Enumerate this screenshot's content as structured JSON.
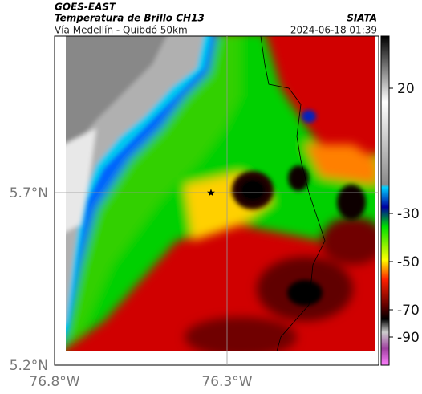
{
  "header": {
    "source": "GOES-EAST",
    "title": "Temperatura de Brillo CH13",
    "agency": "SIATA",
    "subtitle": "Vía Medellín - Quibdó 50km",
    "timestamp": "2024-06-18 01:39"
  },
  "axes": {
    "latitude_labels": [
      "5.7°N",
      "5.2°N"
    ],
    "longitude_labels": [
      "76.8°W",
      "76.3°W"
    ]
  },
  "colorbar": {
    "tick_labels": [
      "20",
      "-30",
      "-50",
      "-70",
      "-90"
    ]
  }
}
